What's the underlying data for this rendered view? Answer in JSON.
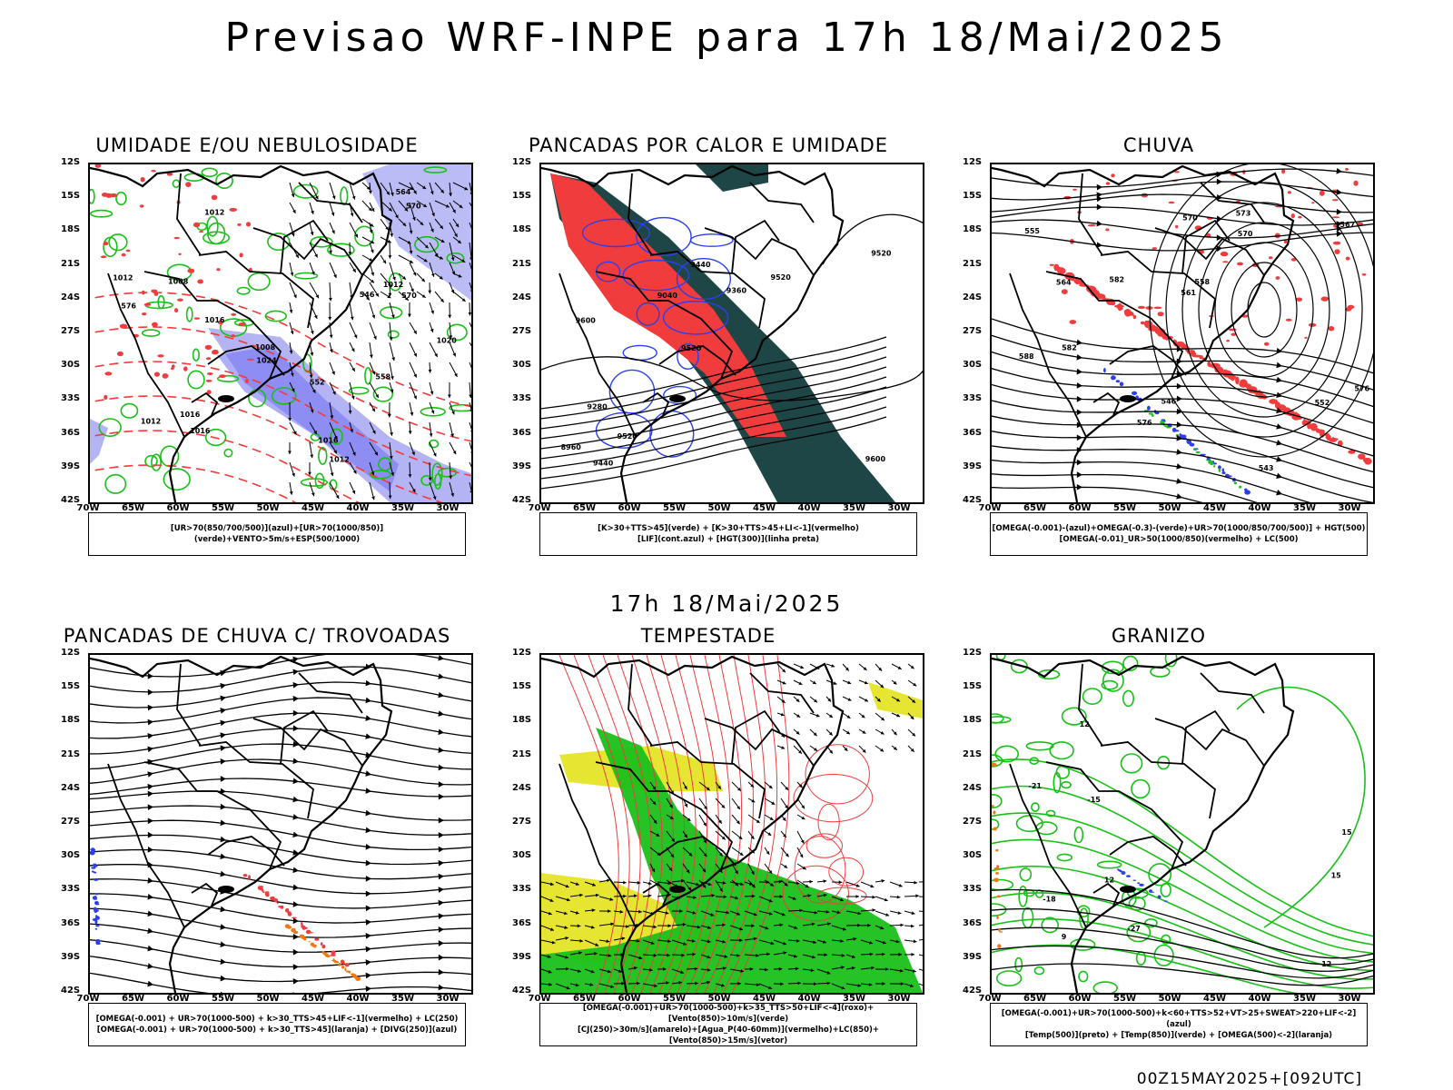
{
  "title": "Previsao WRF-INPE  para 17h 18/Mai/2025",
  "mid_title": "17h 18/Mai/2025",
  "footer": "00Z15MAY2025+[092UTC]",
  "axes": {
    "lat_labels": [
      "12S",
      "15S",
      "18S",
      "21S",
      "24S",
      "27S",
      "30S",
      "33S",
      "36S",
      "39S",
      "42S"
    ],
    "lon_labels": [
      "70W",
      "65W",
      "60W",
      "55W",
      "50W",
      "45W",
      "40W",
      "35W",
      "30W"
    ]
  },
  "colors": {
    "blue": "#2b3ff0",
    "green": "#19c019",
    "red": "#f03c3c",
    "lavender": "#b4b4f5",
    "dark_green": "#1e4646",
    "yellow": "#e6e632",
    "orange": "#f07814"
  },
  "panels": [
    {
      "id": "umidade",
      "title": "UMIDADE E/OU NEBULOSIDADE",
      "legend": [
        "[UR>70(850/700/500)](azul)+[UR>70(1000/850)](verde)+VENTO>5m/s+ESP(500/1000)"
      ],
      "contour_labels": [
        "1012",
        "1012",
        "1016",
        "1008",
        "1012",
        "1016",
        "1020",
        "1016",
        "1024",
        "1016",
        "1012",
        "1012",
        "1008",
        "552",
        "546",
        "564",
        "576",
        "570",
        "558",
        "570"
      ]
    },
    {
      "id": "pancadas-calor",
      "title": "PANCADAS POR CALOR E UMIDADE",
      "legend": [
        "[K>30+TTS>45](verde) + [K>30+TTS>45+LI<-1](vermelho)",
        "[LIF](cont.azul) + [HGT(300)](linha preta)"
      ],
      "contour_labels": [
        "9600",
        "9600",
        "9520",
        "9520",
        "9520",
        "9440",
        "9440",
        "9360",
        "9280",
        "9040",
        "8960",
        "9520"
      ]
    },
    {
      "id": "chuva",
      "title": "CHUVA",
      "legend": [
        "[OMEGA(-0.001)-(azul)+OMEGA(-0.3)-(verde)+UR>70(1000/850/700/500)] + HGT(500)",
        "[OMEGA(-0.01)_UR>50(1000/850)(vermelho) + LC(500)"
      ],
      "contour_labels": [
        "582",
        "588",
        "576",
        "570",
        "573",
        "567",
        "564",
        "561",
        "558",
        "555",
        "552",
        "546",
        "543",
        "582",
        "576",
        "570"
      ]
    },
    {
      "id": "pancadas-trovoadas",
      "title": "PANCADAS DE CHUVA C/ TROVOADAS",
      "legend": [
        "[OMEGA(-0.001) + UR>70(1000-500) + k>30_TTS>45+LIF<-1](vermelho) + LC(250)",
        "[OMEGA(-0.001) + UR>70(1000-500) + k>30_TTS>45](laranja) + [DIVG(250)](azul)"
      ],
      "contour_labels": []
    },
    {
      "id": "tempestade",
      "title": "TEMPESTADE",
      "legend": [
        "[OMEGA(-0.001)+UR>70(1000-500)+k>35_TTS>50+LIF<-4](roxo)+[Vento(850)>10m/s](verde)",
        "[CJ(250)>30m/s](amarelo)+[Agua_P(40-60mm)](vermelho)+LC(850)+[Vento(850)>15m/s](vetor)"
      ],
      "contour_labels": []
    },
    {
      "id": "granizo",
      "title": "GRANIZO",
      "legend": [
        "[OMEGA(-0.001)+UR>70(1000-500)+k<60+TTS>52+VT>25+SWEAT>220+LIF<-2](azul)",
        "[Temp(500)](preto) + [Temp(850)](verde) + [OMEGA(500)<-2](laranja)"
      ],
      "contour_labels": [
        "-15",
        "-18",
        "-21",
        "-27",
        "15",
        "15",
        "12",
        "12",
        "9",
        "12"
      ]
    }
  ]
}
